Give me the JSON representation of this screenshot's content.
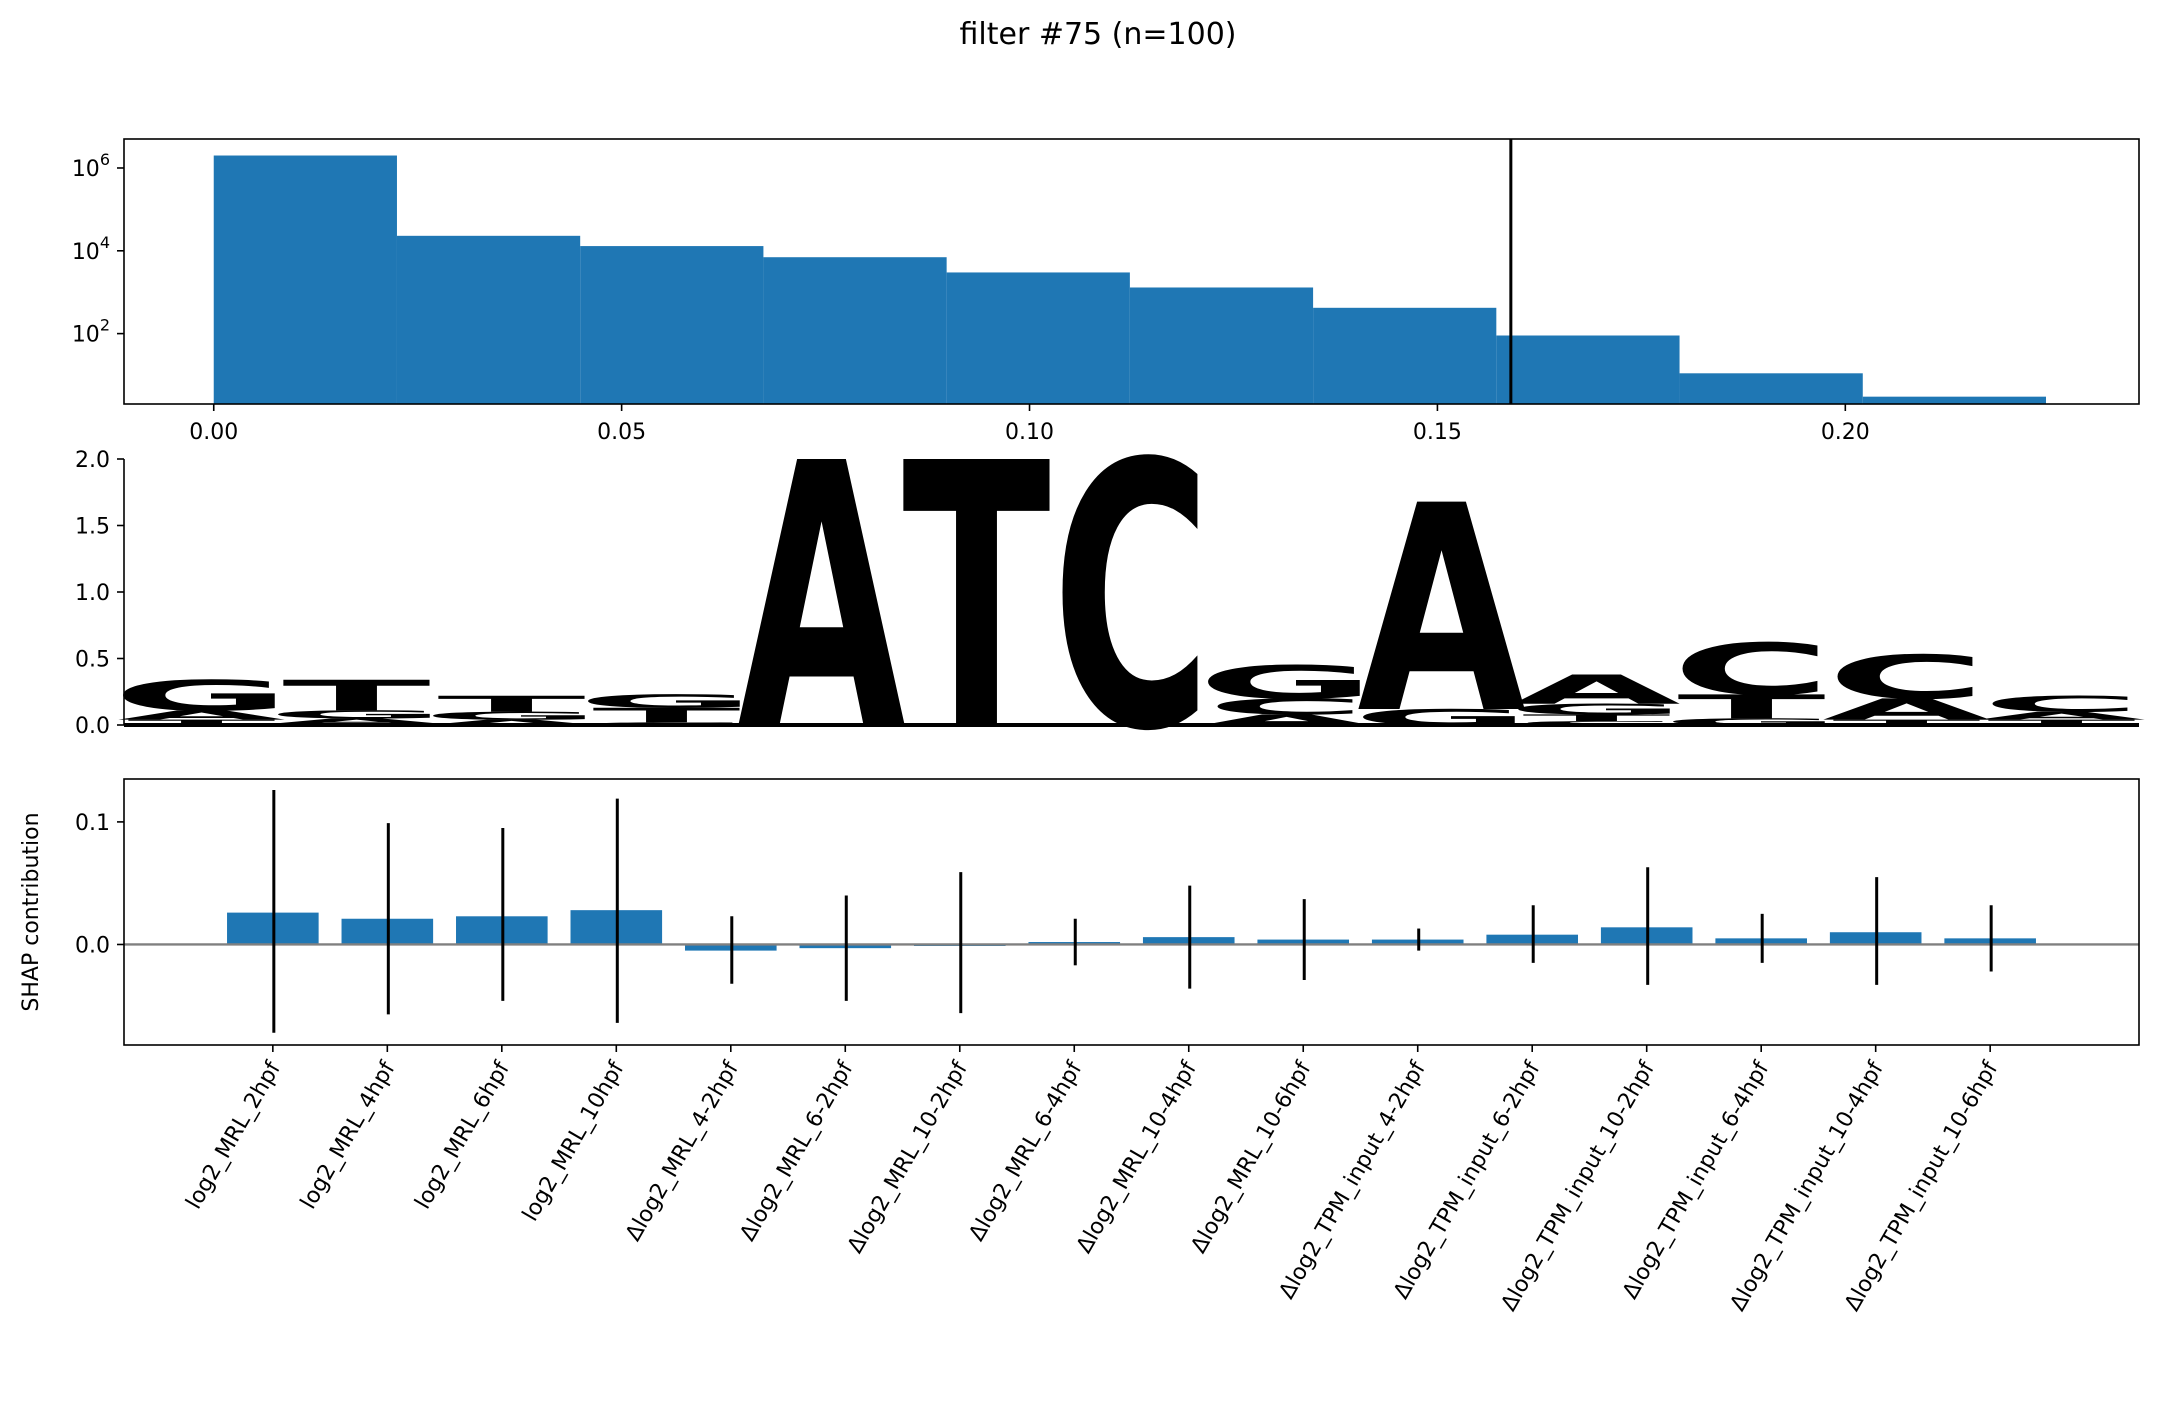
{
  "title": "filter #75 (n=100)",
  "colors": {
    "bar": "#1f77b4",
    "A": "#0f9548",
    "C": "#263f99",
    "G": "#f5ae26",
    "T": "#e6243b",
    "axis": "#000000",
    "zero_line": "#808080"
  },
  "chart_data": [
    {
      "type": "bar",
      "name": "activation-histogram",
      "yscale": "log",
      "xlim": [
        -0.011,
        0.236
      ],
      "ylim_exponent": [
        0.3,
        6.7
      ],
      "xticks": [
        0.0,
        0.05,
        0.1,
        0.15,
        0.2
      ],
      "xtick_labels": [
        "0.00",
        "0.05",
        "0.10",
        "0.15",
        "0.20"
      ],
      "yticks": [
        {
          "base": "10",
          "exp": "2",
          "value": 100
        },
        {
          "base": "10",
          "exp": "4",
          "value": 10000
        },
        {
          "base": "10",
          "exp": "6",
          "value": 1000000
        }
      ],
      "bin_edges": [
        0.0,
        0.02246,
        0.04492,
        0.06738,
        0.08984,
        0.1123,
        0.13476,
        0.15722,
        0.17968,
        0.20214,
        0.2246
      ],
      "counts": [
        2000000,
        23000,
        13000,
        7000,
        3000,
        1300,
        420,
        90,
        11,
        3
      ],
      "threshold": 0.159
    },
    {
      "type": "sequence-logo",
      "name": "motif-logo",
      "ylim": [
        0,
        2.0
      ],
      "yticks": [
        0.0,
        0.5,
        1.0,
        1.5,
        2.0
      ],
      "ytick_labels": [
        "0.0",
        "0.5",
        "1.0",
        "1.5",
        "2.0"
      ],
      "positions": [
        [
          [
            "T",
            0.04
          ],
          [
            "A",
            0.07
          ],
          [
            "G",
            0.23
          ]
        ],
        [
          [
            "C",
            0.01
          ],
          [
            "A",
            0.04
          ],
          [
            "G",
            0.06
          ],
          [
            "T",
            0.23
          ]
        ],
        [
          [
            "A",
            0.04
          ],
          [
            "G",
            0.06
          ],
          [
            "T",
            0.12
          ]
        ],
        [
          [
            "C",
            0.02
          ],
          [
            "T",
            0.11
          ],
          [
            "G",
            0.1
          ]
        ],
        [
          [
            "A",
            2.0
          ]
        ],
        [
          [
            "T",
            2.0
          ]
        ],
        [
          [
            "C",
            2.0
          ]
        ],
        [
          [
            "A",
            0.08
          ],
          [
            "C",
            0.12
          ],
          [
            "G",
            0.25
          ]
        ],
        [
          [
            "G",
            0.12
          ],
          [
            "A",
            1.56
          ]
        ],
        [
          [
            "C",
            0.03
          ],
          [
            "T",
            0.05
          ],
          [
            "G",
            0.08
          ],
          [
            "A",
            0.22
          ]
        ],
        [
          [
            "G",
            0.05
          ],
          [
            "T",
            0.18
          ],
          [
            "C",
            0.39
          ]
        ],
        [
          [
            "T",
            0.04
          ],
          [
            "A",
            0.16
          ],
          [
            "C",
            0.33
          ]
        ],
        [
          [
            "T",
            0.04
          ],
          [
            "A",
            0.06
          ],
          [
            "C",
            0.12
          ]
        ]
      ]
    },
    {
      "type": "bar",
      "name": "shap-contribution",
      "ylabel": "SHAP contribution",
      "ylim": [
        -0.082,
        0.135
      ],
      "yticks": [
        0.0,
        0.1
      ],
      "ytick_labels": [
        "0.0",
        "0.1"
      ],
      "categories": [
        "log2_MRL_2hpf",
        "log2_MRL_4hpf",
        "log2_MRL_6hpf",
        "log2_MRL_10hpf",
        "Δlog2_MRL_4-2hpf",
        "Δlog2_MRL_6-2hpf",
        "Δlog2_MRL_10-2hpf",
        "Δlog2_MRL_6-4hpf",
        "Δlog2_MRL_10-4hpf",
        "Δlog2_MRL_10-6hpf",
        "Δlog2_TPM_input_4-2hpf",
        "Δlog2_TPM_input_6-2hpf",
        "Δlog2_TPM_input_10-2hpf",
        "Δlog2_TPM_input_6-4hpf",
        "Δlog2_TPM_input_10-4hpf",
        "Δlog2_TPM_input_10-6hpf"
      ],
      "values": [
        0.026,
        0.021,
        0.023,
        0.028,
        -0.005,
        -0.003,
        0.0,
        0.002,
        0.006,
        0.004,
        0.004,
        0.008,
        0.014,
        0.005,
        0.01,
        0.005
      ],
      "error_low": [
        -0.072,
        -0.057,
        -0.046,
        -0.064,
        -0.032,
        -0.046,
        -0.056,
        -0.017,
        -0.036,
        -0.029,
        -0.005,
        -0.015,
        -0.033,
        -0.015,
        -0.033,
        -0.022
      ],
      "error_high": [
        0.126,
        0.099,
        0.095,
        0.119,
        0.023,
        0.04,
        0.059,
        0.021,
        0.048,
        0.037,
        0.013,
        0.032,
        0.063,
        0.025,
        0.055,
        0.032
      ]
    }
  ]
}
